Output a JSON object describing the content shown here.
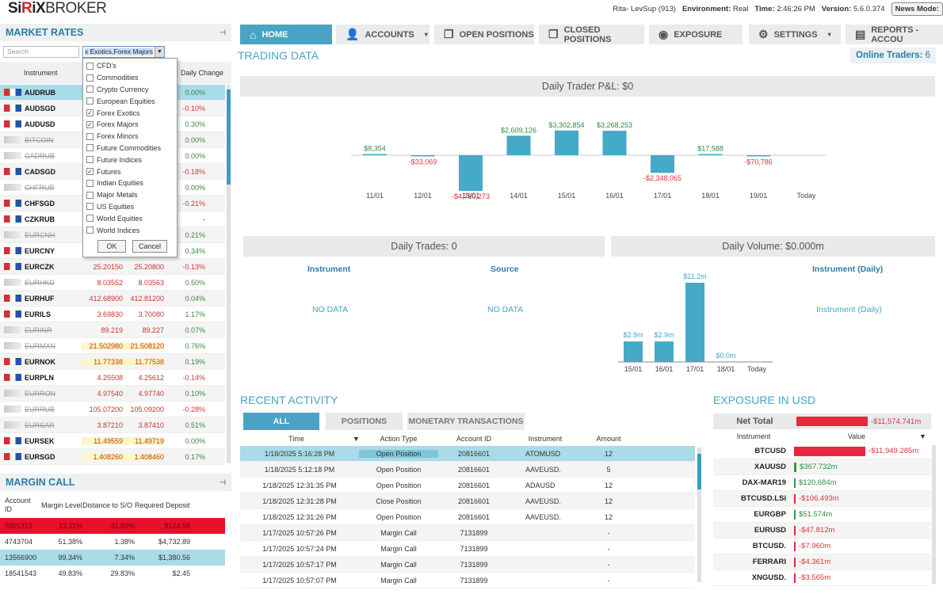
{
  "brand": {
    "part1": "Si",
    "part2": "R",
    "part3": "iX",
    "part4": "BROKER"
  },
  "top": {
    "user": "Rita- LevSup (913)",
    "env_label": "Environment:",
    "env": "Real",
    "time_label": "Time:",
    "time": "2:46:26 PM",
    "ver_label": "Version:",
    "ver": "5.6.0.374",
    "news": "News Mode:"
  },
  "nav": [
    {
      "label": "HOME",
      "icon": "house-icon"
    },
    {
      "label": "ACCOUNTS",
      "icon": "user-icon"
    },
    {
      "label": "OPEN POSITIONS",
      "icon": "copy-icon"
    },
    {
      "label": "CLOSED POSITIONS",
      "icon": "copy-icon"
    },
    {
      "label": "EXPOSURE",
      "icon": "eye-icon"
    },
    {
      "label": "SETTINGS",
      "icon": "gear-icon"
    },
    {
      "label": "REPORTS - ACCOU",
      "icon": "report-icon"
    }
  ],
  "market": {
    "title": "MARKET RATES",
    "search_placeholder": "Search",
    "filter_value": "x Exotics,Forex Majors",
    "col_instrument": "Instrument",
    "col_change": "Daily Change",
    "rows": [
      {
        "sym": "AUDRUB",
        "bid": "",
        "ask": "",
        "chg": "0.00%",
        "dis": false
      },
      {
        "sym": "AUDSGD",
        "bid": "",
        "ask": "",
        "chg": "-0.10%",
        "dis": false
      },
      {
        "sym": "AUDUSD",
        "bid": "",
        "ask": "",
        "chg": "0.30%",
        "dis": false
      },
      {
        "sym": "BITCOIN",
        "bid": "",
        "ask": "",
        "chg": "0.00%",
        "dis": true
      },
      {
        "sym": "CADRUB",
        "bid": "",
        "ask": "",
        "chg": "0.00%",
        "dis": true
      },
      {
        "sym": "CADSGD",
        "bid": "",
        "ask": "",
        "chg": "-0.18%",
        "dis": false
      },
      {
        "sym": "CHFRUB",
        "bid": "",
        "ask": "",
        "chg": "0.00%",
        "dis": true
      },
      {
        "sym": "CHFSGD",
        "bid": "",
        "ask": "",
        "chg": "-0.21%",
        "dis": false
      },
      {
        "sym": "CZKRUB",
        "bid": "",
        "ask": "",
        "chg": "-",
        "dis": false
      },
      {
        "sym": "EURCNH",
        "bid": "",
        "ask": "",
        "chg": "0.21%",
        "dis": true
      },
      {
        "sym": "EURCNY",
        "bid": "",
        "ask": "",
        "chg": "0.34%",
        "dis": false
      },
      {
        "sym": "EURCZK",
        "bid": "25.20150",
        "ask": "25.20800",
        "chg": "-0.13%",
        "dis": false
      },
      {
        "sym": "EURHKD",
        "bid": "8.03552",
        "ask": "8.03563",
        "chg": "0.50%",
        "dis": true
      },
      {
        "sym": "EURHUF",
        "bid": "412.68900",
        "ask": "412.81200",
        "chg": "0.04%",
        "dis": false
      },
      {
        "sym": "EURILS",
        "bid": "3.69830",
        "ask": "3.70080",
        "chg": "1.17%",
        "dis": false
      },
      {
        "sym": "EURINR",
        "bid": "89.219",
        "ask": "89.227",
        "chg": "0.07%",
        "dis": true
      },
      {
        "sym": "EURMXN",
        "bid": "21.502980",
        "ask": "21.508120",
        "chg": "0.76%",
        "dis": true
      },
      {
        "sym": "EURNOK",
        "bid": "11.77338",
        "ask": "11.77538",
        "chg": "0.19%",
        "dis": false
      },
      {
        "sym": "EURPLN",
        "bid": "4.25508",
        "ask": "4.25612",
        "chg": "-0.14%",
        "dis": false
      },
      {
        "sym": "EURRON",
        "bid": "4.97540",
        "ask": "4.97740",
        "chg": "0.10%",
        "dis": true
      },
      {
        "sym": "EURRUB",
        "bid": "105.07200",
        "ask": "105.09200",
        "chg": "-0.28%",
        "dis": true
      },
      {
        "sym": "EURSAR",
        "bid": "3.87210",
        "ask": "3.87410",
        "chg": "0.51%",
        "dis": true
      },
      {
        "sym": "EURSEK",
        "bid": "11.49559",
        "ask": "11.49719",
        "chg": "0.00%",
        "dis": false
      },
      {
        "sym": "EURSGD",
        "bid": "1.408260",
        "ask": "1.408460",
        "chg": "0.17%",
        "dis": false
      }
    ]
  },
  "dropdown": {
    "items": [
      {
        "label": "CFD's",
        "checked": false
      },
      {
        "label": "Commodities",
        "checked": false
      },
      {
        "label": "Crypto Currency",
        "checked": false
      },
      {
        "label": "European Equities",
        "checked": false
      },
      {
        "label": "Forex Exotics",
        "checked": true
      },
      {
        "label": "Forex Majors",
        "checked": true
      },
      {
        "label": "Forex Minors",
        "checked": false
      },
      {
        "label": "Future Commodities",
        "checked": false
      },
      {
        "label": "Future Indices",
        "checked": false
      },
      {
        "label": "Futures",
        "checked": true
      },
      {
        "label": "Indian Equities",
        "checked": false
      },
      {
        "label": "Major Metals",
        "checked": false
      },
      {
        "label": "US Equities",
        "checked": false
      },
      {
        "label": "World Equities",
        "checked": false
      },
      {
        "label": "World Indices",
        "checked": false
      }
    ],
    "ok": "OK",
    "cancel": "Cancel"
  },
  "margin": {
    "title": "MARGIN CALL",
    "cols": [
      "Account ID",
      "Margin Level",
      "Distance to S/O",
      "Required Deposit"
    ],
    "rows": [
      {
        "id": "5801313",
        "lvl": "13.11%",
        "dist": "-31.89%",
        "dep": "$124.58",
        "style": "red"
      },
      {
        "id": "4743704",
        "lvl": "51.38%",
        "dist": "1.38%",
        "dep": "$4,732.89",
        "style": ""
      },
      {
        "id": "13566900",
        "lvl": "99.34%",
        "dist": "7.34%",
        "dep": "$1,380.56",
        "style": "blue"
      },
      {
        "id": "18541543",
        "lvl": "49.83%",
        "dist": "29.83%",
        "dep": "$2.45",
        "style": ""
      }
    ]
  },
  "trading": {
    "title": "TRADING DATA",
    "online_label": "Online Traders:",
    "online": "6",
    "pnl_title": "Daily Trader P&L:",
    "pnl_value": "$0",
    "trades_title": "Daily Trades:",
    "trades_value": "0",
    "volume_title": "Daily Volume:",
    "volume_value": "$0.000m",
    "col_instrument": "Instrument",
    "col_source": "Source",
    "col_inst_daily": "Instrument (Daily)",
    "no_data": "NO DATA",
    "inst_daily_text": "Instrument (Daily)"
  },
  "chart_data": [
    {
      "type": "bar",
      "categories": [
        "11/01",
        "12/01",
        "13/01",
        "14/01",
        "15/01",
        "16/01",
        "17/01",
        "18/01",
        "19/01",
        "Today"
      ],
      "values": [
        8354,
        -33069,
        -4760273,
        2609126,
        3302854,
        3268253,
        -2348065,
        17588,
        -70786,
        0
      ],
      "labels": [
        "$8,354",
        "-$33,069",
        "-$4,760,273",
        "$2,609,126",
        "$3,302,854",
        "$3,268,253",
        "-$2,348,065",
        "$17,588",
        "-$70,786",
        ""
      ]
    },
    {
      "type": "bar",
      "categories": [
        "15/01",
        "16/01",
        "17/01",
        "18/01",
        "Today"
      ],
      "values": [
        2.9,
        2.9,
        11.2,
        0.0,
        0
      ],
      "labels": [
        "$2.9m",
        "$2.9m",
        "$11.2m",
        "$0.0m",
        ""
      ]
    }
  ],
  "activity": {
    "title": "RECENT ACTIVITY",
    "tabs": [
      "ALL",
      "POSITIONS",
      "MONETARY TRANSACTIONS"
    ],
    "cols": [
      "Time",
      "Action Type",
      "Account ID",
      "Instrument",
      "Amount"
    ],
    "rows": [
      {
        "t": "1/18/2025 5:16:28 PM",
        "a": "Open Position",
        "id": "20816601",
        "i": "ATOMUSD",
        "amt": "12"
      },
      {
        "t": "1/18/2025 5:12:18 PM",
        "a": "Open Position",
        "id": "20816601",
        "i": "AAVEUSD.",
        "amt": "5"
      },
      {
        "t": "1/18/2025 12:31:35 PM",
        "a": "Open Position",
        "id": "20816601",
        "i": "ADAUSD",
        "amt": "12"
      },
      {
        "t": "1/18/2025 12:31:28 PM",
        "a": "Close Position",
        "id": "20816601",
        "i": "AAVEUSD.",
        "amt": "12"
      },
      {
        "t": "1/18/2025 12:31:26 PM",
        "a": "Open Position",
        "id": "20816601",
        "i": "AAVEUSD.",
        "amt": "12"
      },
      {
        "t": "1/17/2025 10:57:26 PM",
        "a": "Margin Call",
        "id": "7131899",
        "i": "",
        "amt": "-"
      },
      {
        "t": "1/17/2025 10:57:24 PM",
        "a": "Margin Call",
        "id": "7131899",
        "i": "",
        "amt": "-"
      },
      {
        "t": "1/17/2025 10:57:17 PM",
        "a": "Margin Call",
        "id": "7131899",
        "i": "",
        "amt": "-"
      },
      {
        "t": "1/17/2025 10:57:07 PM",
        "a": "Margin Call",
        "id": "7131899",
        "i": "",
        "amt": "-"
      }
    ]
  },
  "exposure": {
    "title": "EXPOSURE IN USD",
    "net_label": "Net Total",
    "net_value": "-$11,574.741m",
    "col_instrument": "Instrument",
    "col_value": "Value",
    "rows": [
      {
        "sym": "BTCUSD",
        "val": "-$11,949.285m",
        "neg": true,
        "frac": 1.0
      },
      {
        "sym": "XAUUSD",
        "val": "$367.732m",
        "neg": false,
        "frac": 0.03
      },
      {
        "sym": "DAX-MAR19",
        "val": "$120.684m",
        "neg": false,
        "frac": 0.01
      },
      {
        "sym": "BTCUSD.LSi",
        "val": "-$106.493m",
        "neg": true,
        "frac": 0.01
      },
      {
        "sym": "EURGBP",
        "val": "$51.574m",
        "neg": false,
        "frac": 0.005
      },
      {
        "sym": "EURUSD",
        "val": "-$47.812m",
        "neg": true,
        "frac": 0.005
      },
      {
        "sym": "BTCUSD.",
        "val": "-$7.960m",
        "neg": true,
        "frac": 0.005
      },
      {
        "sym": "FERRARI",
        "val": "-$4.361m",
        "neg": true,
        "frac": 0.005
      },
      {
        "sym": "XNGUSD.",
        "val": "-$3.565m",
        "neg": true,
        "frac": 0.005
      }
    ]
  },
  "colors": {
    "accent": "#4aa3c4",
    "negative": "#e8283f",
    "positive": "#2e8b3e"
  }
}
